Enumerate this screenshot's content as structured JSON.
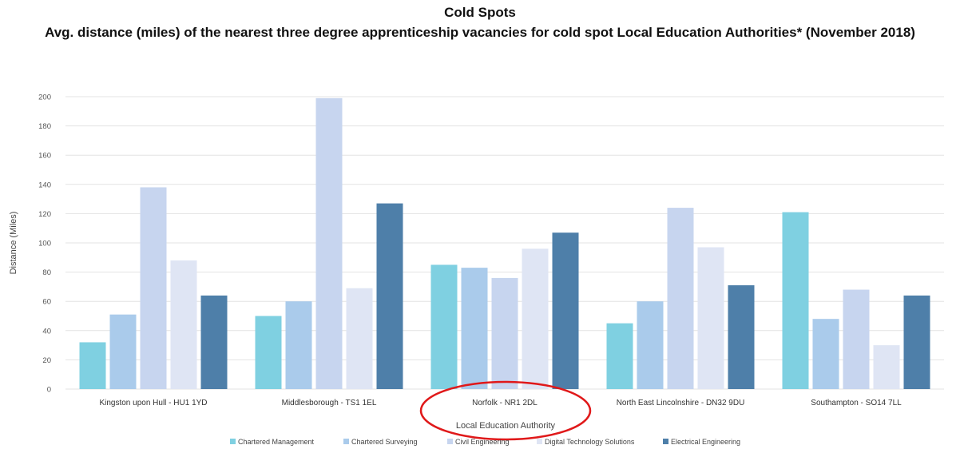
{
  "chart_data": {
    "type": "bar",
    "title": "Cold Spots",
    "subtitle": "Avg. distance (miles) of the nearest three degree apprenticeship vacancies for cold spot Local Education Authorities* (November 2018)",
    "xlabel": "Local Education Authority",
    "ylabel": "Distance (Miles)",
    "ylim": [
      0,
      200
    ],
    "yticks": [
      0,
      20,
      40,
      60,
      80,
      100,
      120,
      140,
      160,
      180,
      200
    ],
    "grid": true,
    "legend_position": "bottom",
    "categories": [
      "Kingston upon Hull - HU1 1YD",
      "Middlesborough - TS1 1EL",
      "Norfolk - NR1 2DL",
      "North East Lincolnshire - DN32 9DU",
      "Southampton - SO14 7LL"
    ],
    "series": [
      {
        "name": "Chartered Management",
        "color": "#7fd0e1",
        "values": [
          32,
          50,
          85,
          45,
          121
        ]
      },
      {
        "name": "Chartered Surveying",
        "color": "#aacbeb",
        "values": [
          51,
          60,
          83,
          60,
          48
        ]
      },
      {
        "name": "Civil Engineering",
        "color": "#c7d5ef",
        "values": [
          138,
          199,
          76,
          124,
          68
        ]
      },
      {
        "name": "Digital Technology Solutions",
        "color": "#dfe5f4",
        "values": [
          88,
          69,
          96,
          97,
          30
        ]
      },
      {
        "name": "Electrical Engineering",
        "color": "#4e7fa9",
        "values": [
          64,
          127,
          107,
          71,
          64
        ]
      }
    ],
    "annotation": {
      "shape": "ellipse",
      "color": "#e0191a",
      "target_category": "Norfolk - NR1 2DL"
    }
  }
}
